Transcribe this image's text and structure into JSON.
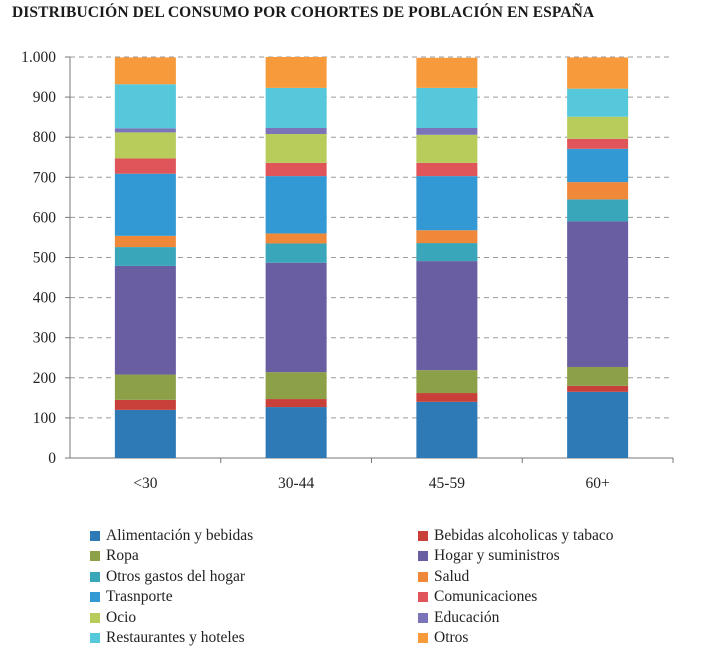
{
  "chart_data": {
    "type": "bar",
    "stacked": true,
    "title": "DISTRIBUCIÓN DEL CONSUMO POR COHORTES DE POBLACIÓN EN ESPAÑA",
    "categories": [
      "<30",
      "30-44",
      "45-59",
      "60+"
    ],
    "ylim": [
      0,
      1000
    ],
    "yticks": [
      0,
      100,
      200,
      300,
      400,
      500,
      600,
      700,
      800,
      900,
      1000
    ],
    "ytick_labels": [
      "0",
      "100",
      "200",
      "300",
      "400",
      "500",
      "600",
      "700",
      "800",
      "900",
      "1.000"
    ],
    "grid": true,
    "legend_position": "bottom",
    "series": [
      {
        "name": "Alimentación y bebidas",
        "color": "#2e7ab6",
        "values": [
          120,
          127,
          140,
          165
        ]
      },
      {
        "name": "Bebidas alcoholicas y tabaco",
        "color": "#c9403a",
        "values": [
          25,
          20,
          22,
          15
        ]
      },
      {
        "name": "Ropa",
        "color": "#8ca048",
        "values": [
          63,
          67,
          57,
          47
        ]
      },
      {
        "name": "Hogar y suministros",
        "color": "#6a5ea3",
        "values": [
          271,
          273,
          272,
          363
        ]
      },
      {
        "name": "Otros gastos del hogar",
        "color": "#3aa6b9",
        "values": [
          47,
          48,
          45,
          55
        ]
      },
      {
        "name": "Salud",
        "color": "#f0883a",
        "values": [
          28,
          25,
          32,
          43
        ]
      },
      {
        "name": "Trasnporte",
        "color": "#3399d4",
        "values": [
          155,
          143,
          135,
          83
        ]
      },
      {
        "name": "Comunicaciones",
        "color": "#e05559",
        "values": [
          38,
          33,
          33,
          25
        ]
      },
      {
        "name": "Ocio",
        "color": "#b8cc5c",
        "values": [
          65,
          72,
          70,
          55
        ]
      },
      {
        "name": "Educación",
        "color": "#7b74b8",
        "values": [
          10,
          15,
          17,
          0
        ]
      },
      {
        "name": "Restaurantes y hoteles",
        "color": "#56c8dc",
        "values": [
          110,
          100,
          100,
          70
        ]
      },
      {
        "name": "Otros",
        "color": "#f79a3c",
        "values": [
          67,
          77,
          75,
          78
        ]
      }
    ]
  }
}
